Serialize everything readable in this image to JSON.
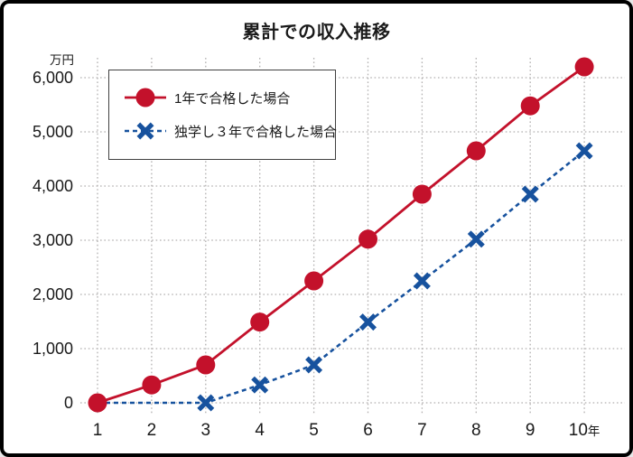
{
  "title": "累計での収入推移",
  "colors": {
    "background": "#ffffff",
    "frame": "#000000",
    "grid": "#b2b0b0",
    "text": "#1a1a1a",
    "legend_border": "#404040",
    "series_red": "#c3112b",
    "series_blue": "#17529e"
  },
  "chart_data": {
    "type": "line",
    "title": "累計での収入推移",
    "y_unit_label": "万円",
    "xlabel": "",
    "ylabel": "万円",
    "x": [
      1,
      2,
      3,
      4,
      5,
      6,
      7,
      8,
      9,
      10
    ],
    "x_tick_labels": [
      "1",
      "2",
      "3",
      "4",
      "5",
      "6",
      "7",
      "8",
      "9",
      "10年"
    ],
    "y_ticks": [
      0,
      1000,
      2000,
      3000,
      4000,
      5000,
      6000
    ],
    "y_tick_labels": [
      "0",
      "1,000",
      "2,000",
      "3,000",
      "4,000",
      "5,000",
      "6,000"
    ],
    "ylim": [
      0,
      6400
    ],
    "xlim": [
      1,
      10
    ],
    "grid": true,
    "grid_style": "dotted",
    "legend_position": "upper-left",
    "series": [
      {
        "name": "1年で合格した場合",
        "color": "#c3112b",
        "line_style": "solid",
        "marker": "circle",
        "values": [
          0,
          330,
          700,
          1490,
          2250,
          3020,
          3850,
          4650,
          5480,
          6200
        ]
      },
      {
        "name": "独学し３年で合格した場合",
        "color": "#17529e",
        "line_style": "dashed",
        "marker": "x",
        "marker_from_x": 3,
        "values": [
          0,
          0,
          0,
          330,
          700,
          1490,
          2250,
          3020,
          3850,
          4650
        ]
      }
    ]
  }
}
